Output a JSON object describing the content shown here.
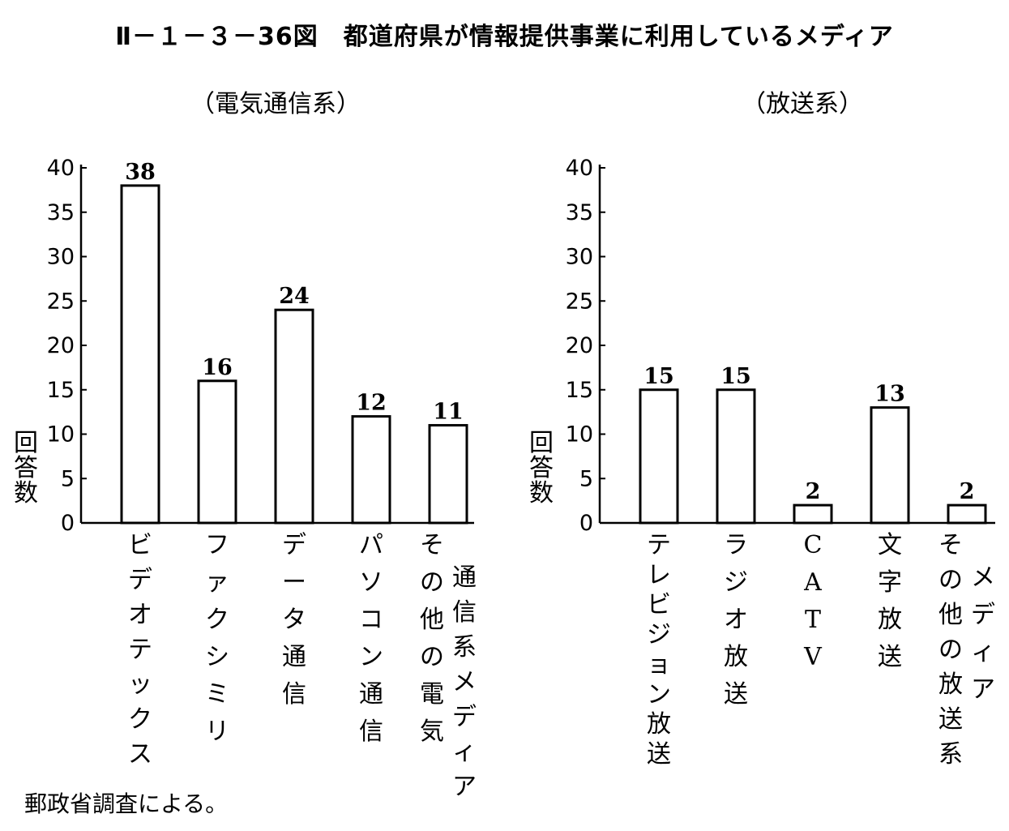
{
  "figure": {
    "title": "Ⅱ－１－３－36図　都道府県が情報提供事業に利用しているメディア",
    "source": "郵政省調査による。"
  },
  "chart_data": [
    {
      "type": "bar",
      "title": "（電気通信系）",
      "ylabel": "回答数",
      "ylim": [
        0,
        40
      ],
      "yticks": [
        0,
        5,
        10,
        15,
        20,
        25,
        30,
        35,
        40
      ],
      "grid": false,
      "categories": [
        [
          "ビデオテックス"
        ],
        [
          "ファクシミリ"
        ],
        [
          "データ通信"
        ],
        [
          "パソコン通信"
        ],
        [
          "その他の電気",
          "通信系メディア"
        ]
      ],
      "values": [
        38,
        16,
        24,
        12,
        11
      ]
    },
    {
      "type": "bar",
      "title": "（放送系）",
      "ylabel": "回答数",
      "ylim": [
        0,
        40
      ],
      "yticks": [
        0,
        5,
        10,
        15,
        20,
        25,
        30,
        35,
        40
      ],
      "grid": false,
      "categories": [
        [
          "テレビジョン放送"
        ],
        [
          "ラジオ放送"
        ],
        [
          "CATV"
        ],
        [
          "文字放送"
        ],
        [
          "その他の放送系",
          "メディア"
        ]
      ],
      "values": [
        15,
        15,
        2,
        13,
        2
      ]
    }
  ]
}
